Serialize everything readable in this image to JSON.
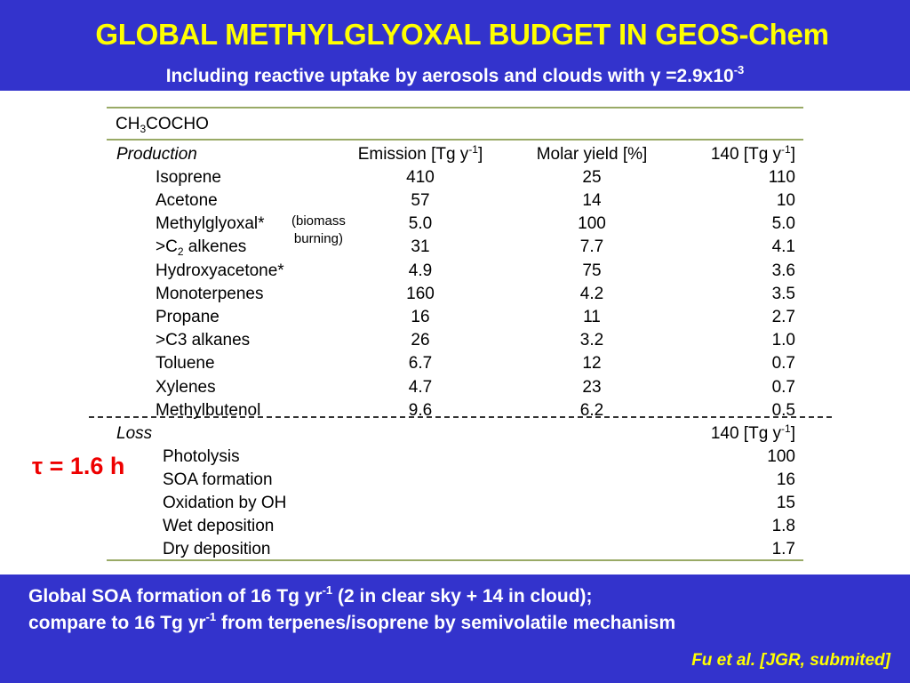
{
  "header": {
    "title": "GLOBAL METHYLGLYOXAL BUDGET IN GEOS-Chem",
    "subtitle_pre": "Including reactive uptake by aerosols and clouds with ",
    "subtitle_gamma": "γ",
    "subtitle_mid": " =2.9x10",
    "subtitle_exp": "-3"
  },
  "table": {
    "species_pre": "CH",
    "species_sub": "3",
    "species_post": "COCHO",
    "production_label": "Production",
    "col_emission_pre": "Emission [Tg y",
    "col_emission_exp": "-1",
    "col_emission_post": "]",
    "col_yield": "Molar yield [%]",
    "col_budget_pre": "140 [Tg y",
    "col_budget_exp": "-1",
    "col_budget_post": "]",
    "biomass_line1": "(biomass",
    "biomass_line2": "burning)",
    "sources": [
      {
        "name": "Isoprene",
        "emission": "410",
        "yield": "25",
        "budget": "110"
      },
      {
        "name": "Acetone",
        "emission": "57",
        "yield": "14",
        "budget": "10"
      },
      {
        "name": "Methylglyoxal*",
        "emission": "5.0",
        "yield": "100",
        "budget": "5.0"
      },
      {
        "name_pre": ">C",
        "name_sub": "2",
        "name_post": " alkenes",
        "emission": "31",
        "yield": "7.7",
        "budget": "4.1"
      },
      {
        "name": "Hydroxyacetone*",
        "emission": "4.9",
        "yield": "75",
        "budget": "3.6"
      },
      {
        "name": "Monoterpenes",
        "emission": "160",
        "yield": "4.2",
        "budget": "3.5"
      },
      {
        "name": "Propane",
        "emission": "16",
        "yield": "11",
        "budget": "2.7"
      },
      {
        "name": ">C3 alkanes",
        "emission": "26",
        "yield": "3.2",
        "budget": "1.0"
      },
      {
        "name": "Toluene",
        "emission": "6.7",
        "yield": "12",
        "budget": "0.7"
      },
      {
        "name": "Xylenes",
        "emission": "4.7",
        "yield": "23",
        "budget": "0.7"
      },
      {
        "name": "Methylbutenol",
        "emission": "9.6",
        "yield": "6.2",
        "budget": "0.5"
      }
    ],
    "loss_label": "Loss",
    "loss_budget_pre": "140 [Tg y",
    "loss_budget_exp": "-1",
    "loss_budget_post": "]",
    "sinks": [
      {
        "name": "Photolysis",
        "value": "100"
      },
      {
        "name": "SOA formation",
        "value": "16"
      },
      {
        "name": "Oxidation by OH",
        "value": "15"
      },
      {
        "name": "Wet deposition",
        "value": "1.8"
      },
      {
        "name": "Dry deposition",
        "value": "1.7"
      }
    ]
  },
  "lifetime": {
    "symbol": "τ",
    "text": " = 1.6 h"
  },
  "footer": {
    "line1_pre": "Global SOA formation of 16 Tg yr",
    "line1_exp": "-1",
    "line1_post": " (2 in clear sky + 14 in cloud);",
    "line2_pre": "compare to 16 Tg yr",
    "line2_exp": "-1",
    "line2_post": " from terpenes/isoprene by semivolatile mechanism",
    "citation": "Fu et al. [JGR, submited]"
  },
  "colors": {
    "band": "#3333cc",
    "title": "#ffff00",
    "tau": "#ee0000",
    "rule": "#99aa66"
  }
}
